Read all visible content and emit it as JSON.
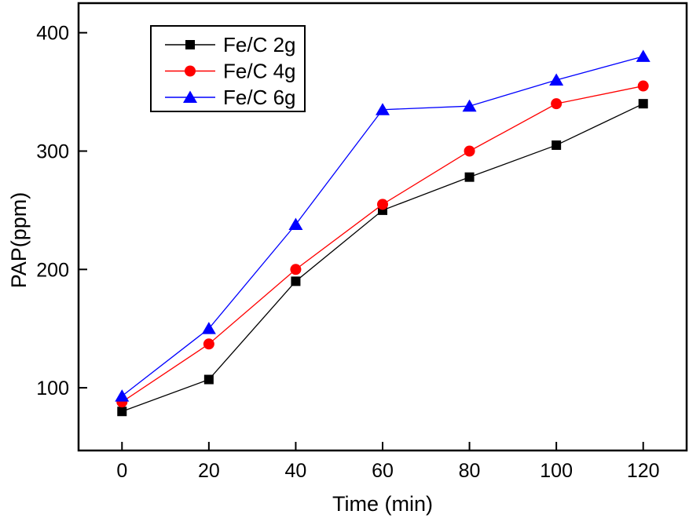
{
  "figure": {
    "background_color": "#ffffff",
    "frame_color": "#000000"
  },
  "chart_data": {
    "type": "line",
    "title": "",
    "xlabel": "Time (min)",
    "ylabel": "PAP(ppm)",
    "x": [
      0,
      20,
      40,
      60,
      80,
      100,
      120
    ],
    "series": [
      {
        "name": "Fe/C 2g",
        "color": "#000000",
        "marker": "square",
        "values": [
          80,
          107,
          190,
          250,
          278,
          305,
          340
        ]
      },
      {
        "name": "Fe/C 4g",
        "color": "#ff0000",
        "marker": "circle",
        "values": [
          88,
          137,
          200,
          255,
          300,
          340,
          355
        ]
      },
      {
        "name": "Fe/C 6g",
        "color": "#0000ff",
        "marker": "triangle",
        "values": [
          93,
          150,
          238,
          335,
          338,
          360,
          380
        ]
      }
    ],
    "xlim": [
      -10,
      130
    ],
    "ylim": [
      47,
      425
    ],
    "x_ticks": [
      0,
      20,
      40,
      60,
      80,
      100,
      120
    ],
    "y_ticks": [
      100,
      200,
      300,
      400
    ],
    "grid": false,
    "tick_direction": "in",
    "legend_position": "upper-left-inside"
  }
}
